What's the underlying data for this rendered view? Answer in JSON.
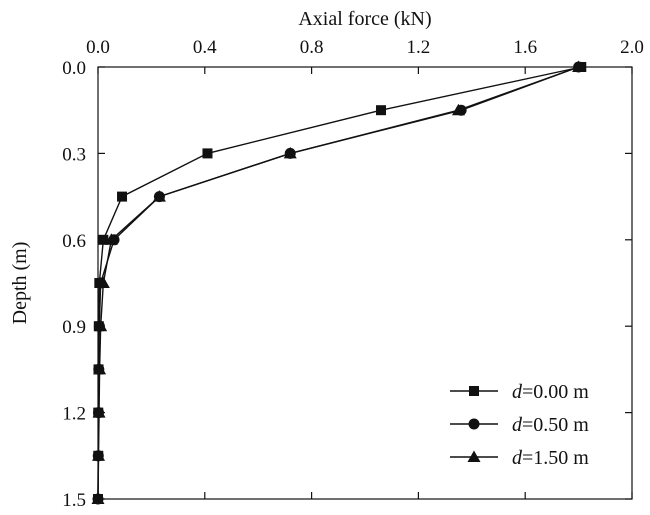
{
  "chart_data": {
    "type": "line",
    "xlabel": "Axial force (kN)",
    "ylabel": "Depth (m)",
    "xlim": [
      0.0,
      2.0
    ],
    "ylim": [
      0.0,
      1.5
    ],
    "y_inverted": true,
    "x_axis_position": "top",
    "x_ticks": [
      "0.0",
      "0.4",
      "0.8",
      "1.2",
      "1.6",
      "2.0"
    ],
    "y_ticks": [
      "0.0",
      "0.3",
      "0.6",
      "0.9",
      "1.2",
      "1.5"
    ],
    "grid": false,
    "legend_position": "bottom-right",
    "series": [
      {
        "name": "d=0.00 m",
        "legend_var": "d",
        "legend_rest": "=0.00 m",
        "marker": "square",
        "points": [
          {
            "x": 1.81,
            "y": 0.0
          },
          {
            "x": 1.06,
            "y": 0.15
          },
          {
            "x": 0.41,
            "y": 0.3
          },
          {
            "x": 0.09,
            "y": 0.45
          },
          {
            "x": 0.02,
            "y": 0.6
          },
          {
            "x": 0.005,
            "y": 0.75
          },
          {
            "x": 0.003,
            "y": 0.9
          },
          {
            "x": 0.002,
            "y": 1.05
          },
          {
            "x": 0.001,
            "y": 1.2
          },
          {
            "x": 0.001,
            "y": 1.35
          },
          {
            "x": 0.0,
            "y": 1.5
          }
        ]
      },
      {
        "name": "d=0.50 m",
        "legend_var": "d",
        "legend_rest": "=0.50 m",
        "marker": "circle",
        "points": [
          {
            "x": 1.8,
            "y": 0.0
          },
          {
            "x": 1.36,
            "y": 0.15
          },
          {
            "x": 0.72,
            "y": 0.3
          },
          {
            "x": 0.23,
            "y": 0.45
          },
          {
            "x": 0.06,
            "y": 0.6
          },
          {
            "x": 0.01,
            "y": 0.75
          },
          {
            "x": 0.005,
            "y": 0.9
          },
          {
            "x": 0.003,
            "y": 1.05
          },
          {
            "x": 0.002,
            "y": 1.2
          },
          {
            "x": 0.001,
            "y": 1.35
          },
          {
            "x": 0.0,
            "y": 1.5
          }
        ]
      },
      {
        "name": "d=1.50 m",
        "legend_var": "d",
        "legend_rest": "=1.50 m",
        "marker": "triangle",
        "points": [
          {
            "x": 1.8,
            "y": 0.0
          },
          {
            "x": 1.35,
            "y": 0.15
          },
          {
            "x": 0.72,
            "y": 0.3
          },
          {
            "x": 0.23,
            "y": 0.45
          },
          {
            "x": 0.05,
            "y": 0.6
          },
          {
            "x": 0.02,
            "y": 0.75
          },
          {
            "x": 0.01,
            "y": 0.9
          },
          {
            "x": 0.006,
            "y": 1.05
          },
          {
            "x": 0.004,
            "y": 1.2
          },
          {
            "x": 0.002,
            "y": 1.35
          },
          {
            "x": 0.0,
            "y": 1.5
          }
        ]
      }
    ]
  }
}
